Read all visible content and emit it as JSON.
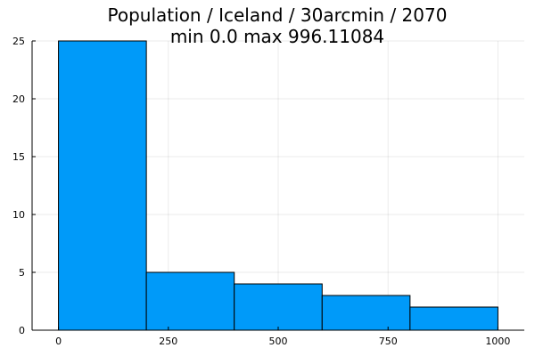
{
  "chart_data": {
    "type": "bar",
    "title": "Population / Iceland / 30arcmin / 2070",
    "subtitle": "min 0.0  max 996.11084",
    "xlabel": "",
    "ylabel": "",
    "bins": [
      {
        "x0": 0,
        "x1": 200,
        "count": 25
      },
      {
        "x0": 200,
        "x1": 400,
        "count": 5
      },
      {
        "x0": 400,
        "x1": 600,
        "count": 4
      },
      {
        "x0": 600,
        "x1": 800,
        "count": 3
      },
      {
        "x0": 800,
        "x1": 1000,
        "count": 2
      }
    ],
    "xlim": [
      -60,
      1060
    ],
    "ylim": [
      0,
      25
    ],
    "xticks": [
      0,
      250,
      500,
      750,
      1000
    ],
    "xtick_labels": [
      "0",
      "250",
      "500",
      "750",
      "1000"
    ],
    "yticks": [
      0,
      5,
      10,
      15,
      20,
      25
    ],
    "ytick_labels": [
      "0",
      "5",
      "10",
      "15",
      "20",
      "25"
    ],
    "grid": true,
    "legend": "none",
    "colors": {
      "bar_fill": "#009af9",
      "bar_edge": "#000000"
    }
  }
}
